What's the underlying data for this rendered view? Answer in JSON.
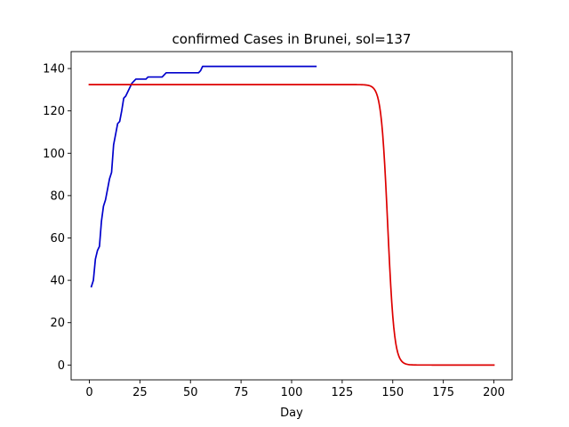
{
  "chart_data": {
    "type": "line",
    "title": "confirmed Cases in Brunei, sol=137",
    "xlabel": "Day",
    "ylabel": "",
    "xlim": [
      -9,
      209
    ],
    "ylim": [
      -7,
      148
    ],
    "xticks": [
      0,
      25,
      50,
      75,
      100,
      125,
      150,
      175,
      200
    ],
    "yticks": [
      0,
      20,
      40,
      60,
      80,
      100,
      120,
      140
    ],
    "grid": false,
    "legend": "none",
    "series": [
      {
        "color": "#0000cc",
        "x": [
          1,
          2,
          3,
          4,
          5,
          6,
          7,
          8,
          9,
          10,
          11,
          12,
          13,
          14,
          15,
          16,
          17,
          18,
          19,
          20,
          21,
          22,
          23,
          24,
          25,
          26,
          27,
          28,
          29,
          30,
          31,
          32,
          33,
          34,
          35,
          36,
          37,
          38,
          40,
          45,
          50,
          54,
          55,
          56,
          60,
          70,
          80,
          90,
          100,
          110,
          112
        ],
        "y": [
          37,
          40,
          50,
          54,
          56,
          68,
          75,
          78,
          83,
          88,
          91,
          104,
          109,
          114,
          115,
          120,
          126,
          127,
          129,
          131,
          133,
          134,
          135,
          135,
          135,
          135,
          135,
          135,
          136,
          136,
          136,
          136,
          136,
          136,
          136,
          136,
          137,
          138,
          138,
          138,
          138,
          138,
          139,
          141,
          141,
          141,
          141,
          141,
          141,
          141,
          141
        ]
      },
      {
        "color": "#dd0000",
        "model": "logistic-decay",
        "plateau": 132.4,
        "midpoint": 147.5,
        "rate": 0.62,
        "x_range": [
          0,
          200
        ],
        "step": 0.5
      }
    ]
  }
}
